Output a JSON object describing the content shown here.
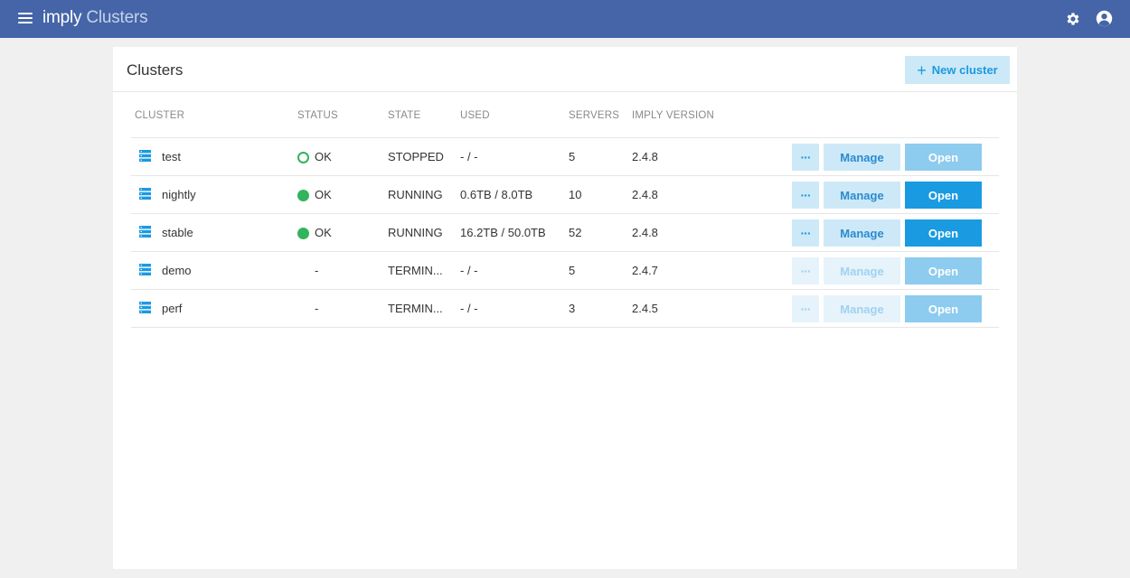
{
  "header": {
    "brand": "imply",
    "app_title": "Clusters",
    "settings_icon": "gear-icon",
    "account_icon": "user-circle-icon",
    "bg_color": "#4565a8"
  },
  "panel": {
    "title": "Clusters",
    "new_cluster_label": "New cluster",
    "new_cluster_icon": "+"
  },
  "table": {
    "columns": [
      "CLUSTER",
      "STATUS",
      "STATE",
      "USED",
      "SERVERS",
      "IMPLY VERSION"
    ],
    "actions": {
      "more": "···",
      "manage": "Manage",
      "open": "Open"
    },
    "rows": [
      {
        "name": "test",
        "status": "OK",
        "status_type": "ok-empty",
        "state": "STOPPED",
        "used": "- / -",
        "servers": "5",
        "version": "2.4.8",
        "actions_enabled": true,
        "open_enabled": false
      },
      {
        "name": "nightly",
        "status": "OK",
        "status_type": "ok",
        "state": "RUNNING",
        "used": "0.6TB / 8.0TB",
        "servers": "10",
        "version": "2.4.8",
        "actions_enabled": true,
        "open_enabled": true
      },
      {
        "name": "stable",
        "status": "OK",
        "status_type": "ok",
        "state": "RUNNING",
        "used": "16.2TB / 50.0TB",
        "servers": "52",
        "version": "2.4.8",
        "actions_enabled": true,
        "open_enabled": true
      },
      {
        "name": "demo",
        "status": "-",
        "status_type": "none",
        "state": "TERMIN...",
        "used": "- / -",
        "servers": "5",
        "version": "2.4.7",
        "actions_enabled": false,
        "open_enabled": false
      },
      {
        "name": "perf",
        "status": "-",
        "status_type": "none",
        "state": "TERMIN...",
        "used": "- / -",
        "servers": "3",
        "version": "2.4.5",
        "actions_enabled": false,
        "open_enabled": false
      }
    ]
  },
  "colors": {
    "accent": "#1a9ae0",
    "status_ok": "#32b45c"
  }
}
